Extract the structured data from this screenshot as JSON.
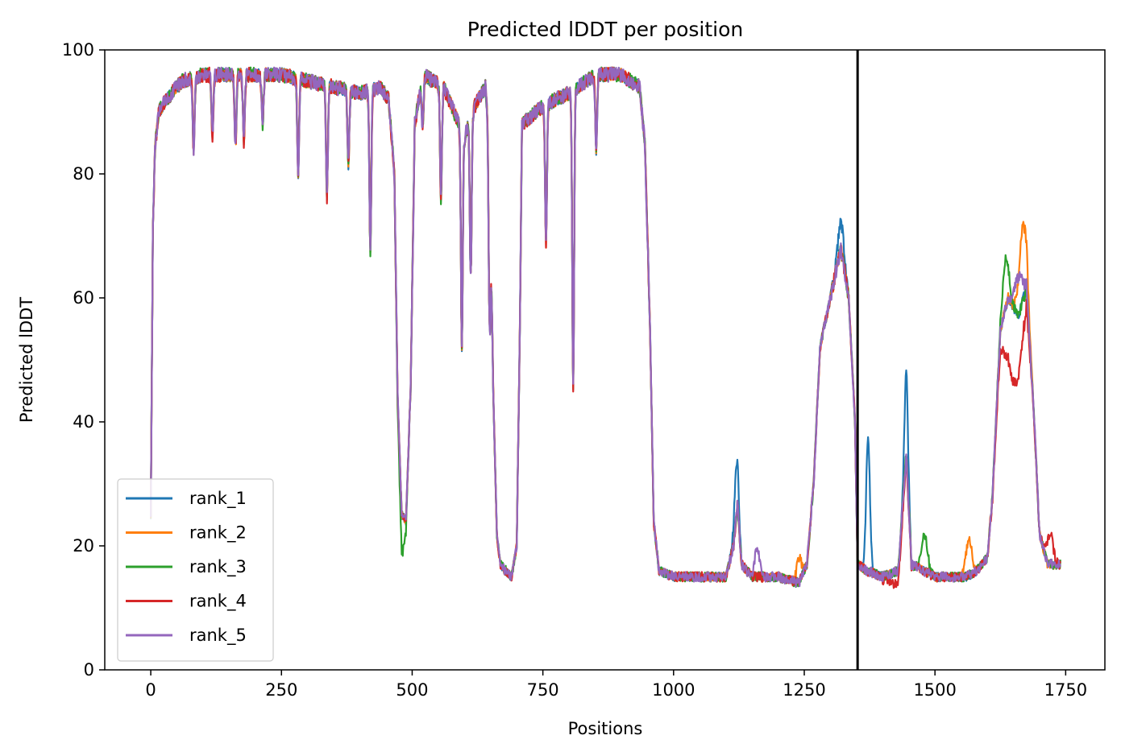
{
  "chart_data": {
    "type": "line",
    "title": "Predicted lDDT per position",
    "xlabel": "Positions",
    "ylabel": "Predicted lDDT",
    "xlim": [
      -88,
      1825
    ],
    "ylim": [
      0,
      100
    ],
    "xticks": [
      0,
      250,
      500,
      750,
      1000,
      1250,
      1500,
      1750
    ],
    "yticks": [
      0,
      20,
      40,
      60,
      80,
      100
    ],
    "grid": false,
    "legend_position": "lower-left",
    "vline_x": 1352,
    "vline_color": "#000000",
    "series": [
      {
        "name": "rank_1",
        "color": "#1f77b4"
      },
      {
        "name": "rank_2",
        "color": "#ff7f0e"
      },
      {
        "name": "rank_3",
        "color": "#2ca02c"
      },
      {
        "name": "rank_4",
        "color": "#d62728"
      },
      {
        "name": "rank_5",
        "color": "#9467bd"
      }
    ],
    "base_profile": [
      [
        0,
        25
      ],
      [
        4,
        70
      ],
      [
        8,
        84
      ],
      [
        15,
        90
      ],
      [
        30,
        92
      ],
      [
        60,
        95
      ],
      [
        100,
        96
      ],
      [
        150,
        96
      ],
      [
        200,
        96
      ],
      [
        250,
        96
      ],
      [
        300,
        95
      ],
      [
        350,
        94
      ],
      [
        400,
        93
      ],
      [
        440,
        94
      ],
      [
        455,
        92
      ],
      [
        466,
        80
      ],
      [
        472,
        45
      ],
      [
        480,
        25
      ],
      [
        488,
        24
      ],
      [
        497,
        45
      ],
      [
        505,
        88
      ],
      [
        520,
        96
      ],
      [
        560,
        94
      ],
      [
        600,
        86
      ],
      [
        620,
        91
      ],
      [
        640,
        94
      ],
      [
        648,
        86
      ],
      [
        655,
        45
      ],
      [
        662,
        22
      ],
      [
        668,
        17
      ],
      [
        690,
        15
      ],
      [
        700,
        20
      ],
      [
        706,
        55
      ],
      [
        710,
        88
      ],
      [
        750,
        91
      ],
      [
        800,
        93
      ],
      [
        850,
        96
      ],
      [
        900,
        96
      ],
      [
        935,
        94
      ],
      [
        945,
        85
      ],
      [
        955,
        55
      ],
      [
        962,
        24
      ],
      [
        972,
        16
      ],
      [
        1000,
        15
      ],
      [
        1050,
        15
      ],
      [
        1100,
        15
      ],
      [
        1115,
        20
      ],
      [
        1122,
        27
      ],
      [
        1130,
        17
      ],
      [
        1150,
        15
      ],
      [
        1200,
        15
      ],
      [
        1240,
        14
      ],
      [
        1255,
        17
      ],
      [
        1268,
        30
      ],
      [
        1280,
        52
      ],
      [
        1300,
        60
      ],
      [
        1320,
        68
      ],
      [
        1335,
        60
      ],
      [
        1347,
        40
      ],
      [
        1352,
        17
      ],
      [
        1370,
        16
      ],
      [
        1400,
        15
      ],
      [
        1430,
        16
      ],
      [
        1445,
        35
      ],
      [
        1455,
        17
      ],
      [
        1500,
        15
      ],
      [
        1560,
        15
      ],
      [
        1580,
        16
      ],
      [
        1600,
        18
      ],
      [
        1610,
        28
      ],
      [
        1625,
        55
      ],
      [
        1640,
        60
      ],
      [
        1660,
        57
      ],
      [
        1675,
        62
      ],
      [
        1690,
        40
      ],
      [
        1700,
        22
      ],
      [
        1715,
        17
      ],
      [
        1740,
        17
      ]
    ],
    "dips": [
      [
        82,
        12
      ],
      [
        118,
        10
      ],
      [
        162,
        12
      ],
      [
        178,
        11
      ],
      [
        214,
        8
      ],
      [
        282,
        15
      ],
      [
        337,
        18
      ],
      [
        378,
        12
      ],
      [
        420,
        26
      ],
      [
        520,
        8
      ],
      [
        555,
        18
      ],
      [
        595,
        35
      ],
      [
        612,
        26
      ],
      [
        648,
        30
      ],
      [
        756,
        22
      ],
      [
        808,
        48
      ],
      [
        852,
        12
      ]
    ],
    "series_bumps": [
      [
        {
          "x": 1120,
          "w": 6,
          "h": 8
        },
        {
          "x": 1372,
          "w": 5,
          "h": 22
        },
        {
          "x": 1445,
          "w": 5,
          "h": 14
        },
        {
          "x": 1320,
          "w": 8,
          "h": 5
        }
      ],
      [
        {
          "x": 1565,
          "w": 8,
          "h": 6
        },
        {
          "x": 1668,
          "w": 10,
          "h": 12
        },
        {
          "x": 1240,
          "w": 6,
          "h": 4
        }
      ],
      [
        {
          "x": 480,
          "w": 8,
          "h": -6
        },
        {
          "x": 1480,
          "w": 8,
          "h": 6
        },
        {
          "x": 1635,
          "w": 8,
          "h": 8
        }
      ],
      [
        {
          "x": 1650,
          "w": 22,
          "h": -12
        },
        {
          "x": 1720,
          "w": 8,
          "h": 5
        },
        {
          "x": 1425,
          "w": 20,
          "h": -2
        }
      ],
      [
        {
          "x": 1160,
          "w": 6,
          "h": 5
        },
        {
          "x": 1660,
          "w": 10,
          "h": 6
        }
      ]
    ]
  }
}
